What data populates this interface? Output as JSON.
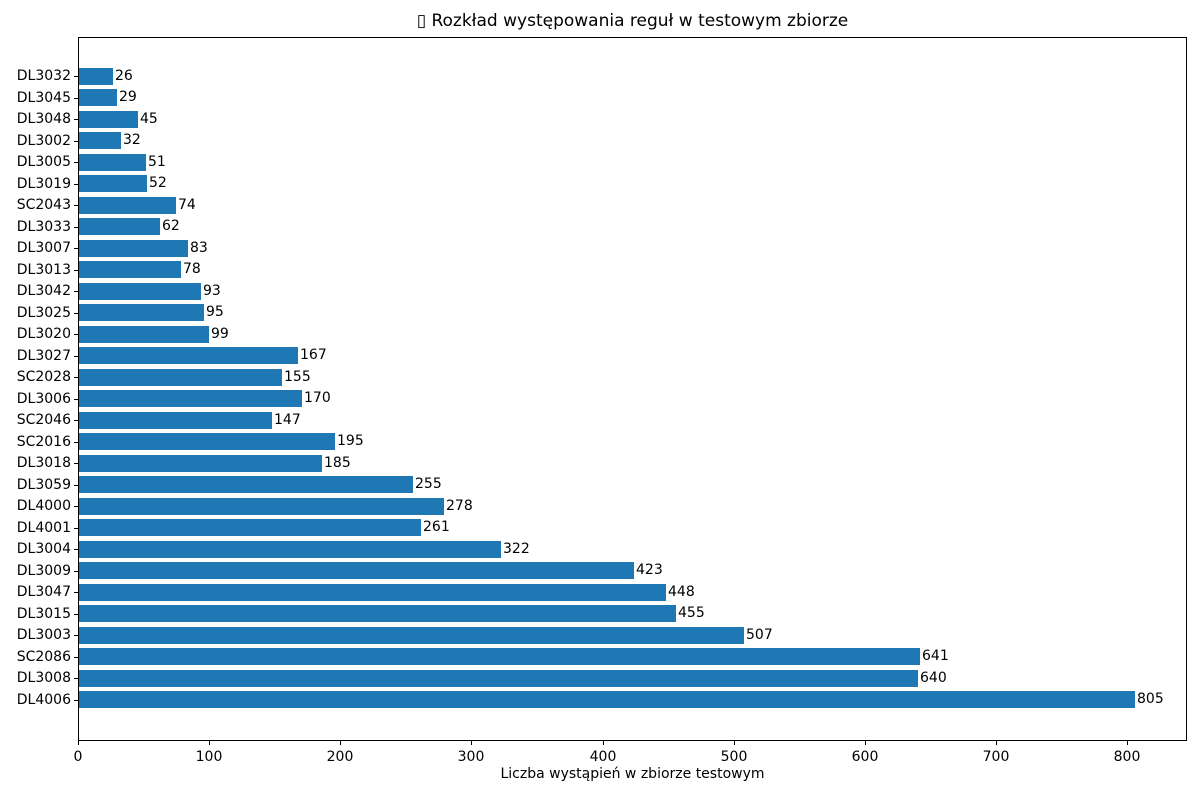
{
  "chart_data": {
    "type": "bar",
    "orientation": "horizontal",
    "title": "▯ Rozkład występowania reguł w testowym zbiorze",
    "xlabel": "Liczba wystąpień w zbiorze testowym",
    "ylabel": "",
    "categories_top_to_bottom": [
      "DL3032",
      "DL3045",
      "DL3048",
      "DL3002",
      "DL3005",
      "DL3019",
      "SC2043",
      "DL3033",
      "DL3007",
      "DL3013",
      "DL3042",
      "DL3025",
      "DL3020",
      "DL3027",
      "SC2028",
      "DL3006",
      "SC2046",
      "SC2016",
      "DL3018",
      "DL3059",
      "DL4000",
      "DL4001",
      "DL3004",
      "DL3009",
      "DL3047",
      "DL3015",
      "DL3003",
      "SC2086",
      "DL3008",
      "DL4006"
    ],
    "values": [
      26,
      29,
      45,
      32,
      51,
      52,
      74,
      62,
      83,
      78,
      93,
      95,
      99,
      167,
      155,
      170,
      147,
      195,
      185,
      255,
      278,
      261,
      322,
      423,
      448,
      455,
      507,
      641,
      640,
      805
    ],
    "value_labels_shown": true,
    "x_ticks": [
      0,
      100,
      200,
      300,
      400,
      500,
      600,
      700,
      800
    ],
    "xlim": [
      0,
      846
    ],
    "grid": false,
    "legend": null,
    "bar_color": "#1f77b4",
    "text_color": "#000000",
    "spine_color": "#000000"
  }
}
